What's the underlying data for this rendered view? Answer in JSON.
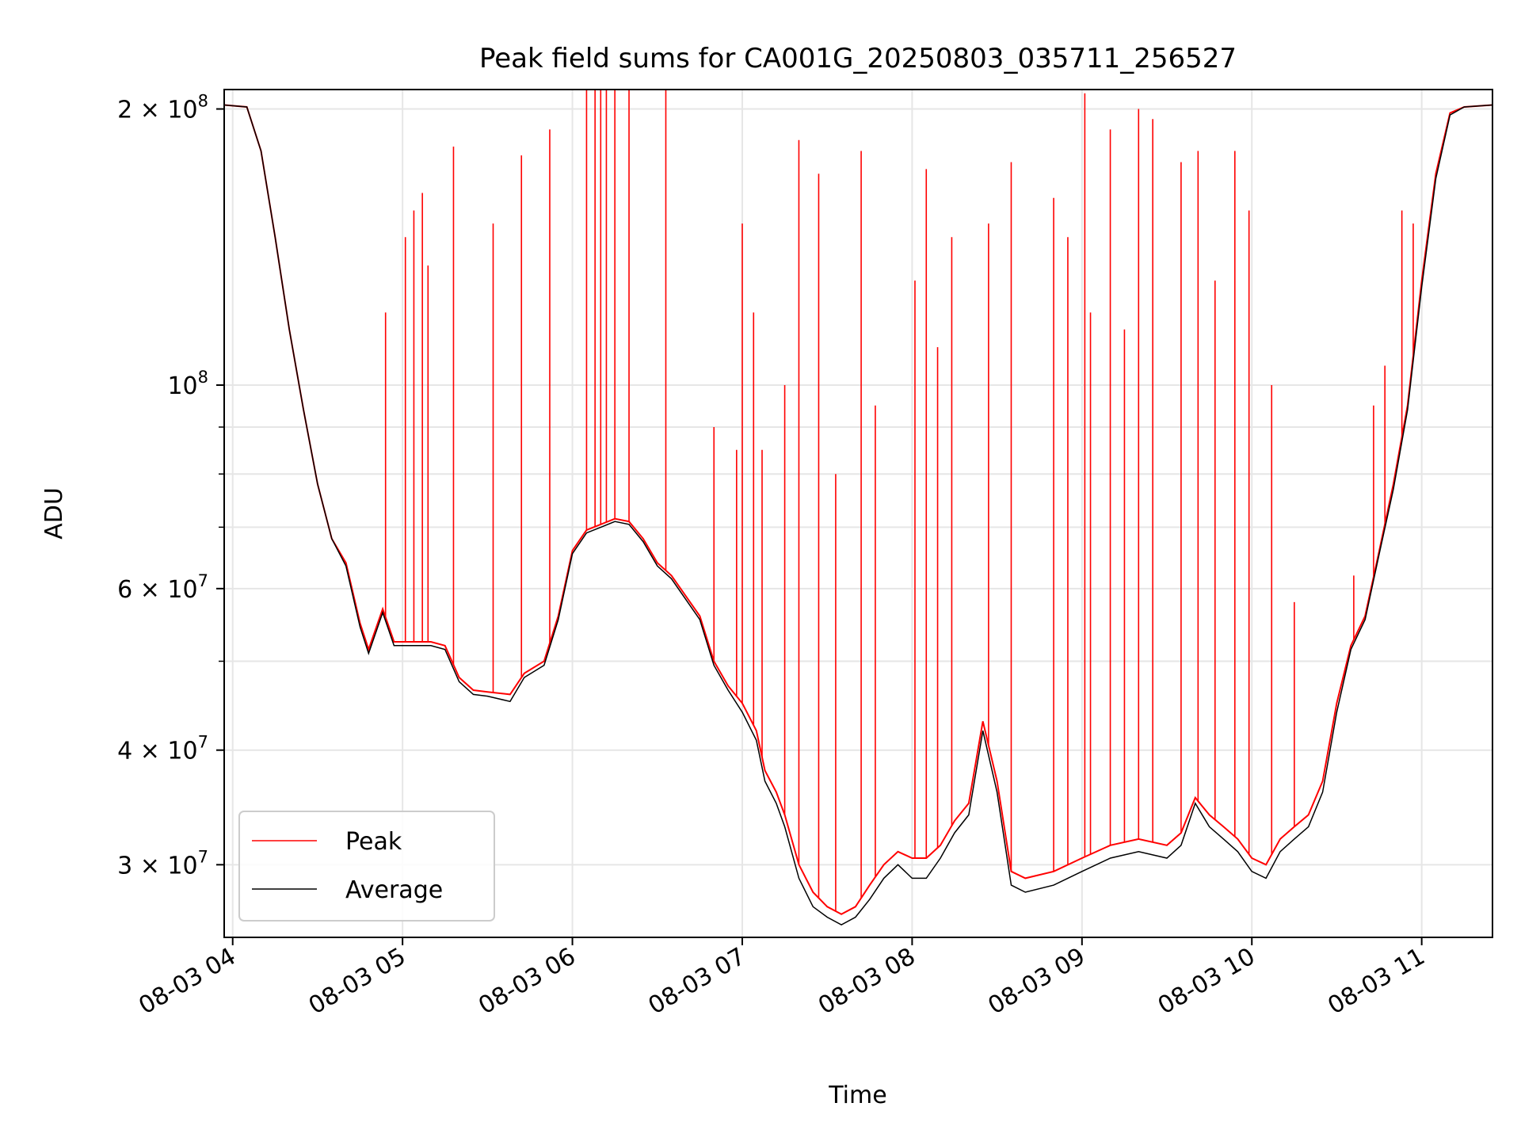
{
  "chart_data": {
    "type": "line",
    "title": "Peak field sums for CA001G_20250803_035711_256527",
    "xlabel": "Time",
    "ylabel": "ADU",
    "xscale": "time",
    "yscale": "log",
    "xlim": [
      "2025-08-03 03:57",
      "2025-08-03 11:25"
    ],
    "ylim": [
      25000000,
      210000000
    ],
    "xticks": [
      {
        "value": "2025-08-03 04:00",
        "label": "08-03 04"
      },
      {
        "value": "2025-08-03 05:00",
        "label": "08-03 05"
      },
      {
        "value": "2025-08-03 06:00",
        "label": "08-03 06"
      },
      {
        "value": "2025-08-03 07:00",
        "label": "08-03 07"
      },
      {
        "value": "2025-08-03 08:00",
        "label": "08-03 08"
      },
      {
        "value": "2025-08-03 09:00",
        "label": "08-03 09"
      },
      {
        "value": "2025-08-03 10:00",
        "label": "08-03 10"
      },
      {
        "value": "2025-08-03 11:00",
        "label": "08-03 11"
      }
    ],
    "yticks": [
      {
        "value": 200000000,
        "mantissa": "2",
        "exponent": "8"
      },
      {
        "value": 100000000,
        "mantissa": "",
        "exponent": "8"
      },
      {
        "value": 60000000,
        "mantissa": "6",
        "exponent": "7"
      },
      {
        "value": 40000000,
        "mantissa": "4",
        "exponent": "7"
      },
      {
        "value": 30000000,
        "mantissa": "3",
        "exponent": "7"
      }
    ],
    "yminor": [
      50000000,
      70000000,
      80000000,
      90000000
    ],
    "grid": true,
    "legend_position": "lower-left",
    "series": [
      {
        "name": "Peak",
        "color": "#ff0000",
        "baseline": [
          [
            "2025-08-03 03:57",
            202000000
          ],
          [
            "2025-08-03 04:05",
            201000000
          ],
          [
            "2025-08-03 04:10",
            180000000
          ],
          [
            "2025-08-03 04:15",
            145000000
          ],
          [
            "2025-08-03 04:20",
            115000000
          ],
          [
            "2025-08-03 04:25",
            94000000
          ],
          [
            "2025-08-03 04:30",
            78000000
          ],
          [
            "2025-08-03 04:35",
            68000000
          ],
          [
            "2025-08-03 04:40",
            64000000
          ],
          [
            "2025-08-03 04:45",
            55000000
          ],
          [
            "2025-08-03 04:48",
            51500000
          ],
          [
            "2025-08-03 04:53",
            57000000
          ],
          [
            "2025-08-03 04:57",
            52500000
          ],
          [
            "2025-08-03 05:10",
            52500000
          ],
          [
            "2025-08-03 05:15",
            52000000
          ],
          [
            "2025-08-03 05:20",
            48000000
          ],
          [
            "2025-08-03 05:25",
            46500000
          ],
          [
            "2025-08-03 05:30",
            46300000
          ],
          [
            "2025-08-03 05:38",
            46000000
          ],
          [
            "2025-08-03 05:43",
            48500000
          ],
          [
            "2025-08-03 05:50",
            50000000
          ],
          [
            "2025-08-03 05:55",
            56000000
          ],
          [
            "2025-08-03 06:00",
            66000000
          ],
          [
            "2025-08-03 06:05",
            69500000
          ],
          [
            "2025-08-03 06:15",
            71500000
          ],
          [
            "2025-08-03 06:20",
            71000000
          ],
          [
            "2025-08-03 06:25",
            68000000
          ],
          [
            "2025-08-03 06:30",
            64000000
          ],
          [
            "2025-08-03 06:35",
            62000000
          ],
          [
            "2025-08-03 06:45",
            56000000
          ],
          [
            "2025-08-03 06:50",
            50000000
          ],
          [
            "2025-08-03 06:55",
            47000000
          ],
          [
            "2025-08-03 07:00",
            45000000
          ],
          [
            "2025-08-03 07:05",
            42000000
          ],
          [
            "2025-08-03 07:08",
            38000000
          ],
          [
            "2025-08-03 07:12",
            36000000
          ],
          [
            "2025-08-03 07:15",
            34000000
          ],
          [
            "2025-08-03 07:20",
            30000000
          ],
          [
            "2025-08-03 07:25",
            28000000
          ],
          [
            "2025-08-03 07:30",
            27000000
          ],
          [
            "2025-08-03 07:35",
            26500000
          ],
          [
            "2025-08-03 07:40",
            27000000
          ],
          [
            "2025-08-03 07:45",
            28500000
          ],
          [
            "2025-08-03 07:50",
            30000000
          ],
          [
            "2025-08-03 07:55",
            31000000
          ],
          [
            "2025-08-03 08:00",
            30500000
          ],
          [
            "2025-08-03 08:05",
            30500000
          ],
          [
            "2025-08-03 08:10",
            31500000
          ],
          [
            "2025-08-03 08:15",
            33500000
          ],
          [
            "2025-08-03 08:20",
            35000000
          ],
          [
            "2025-08-03 08:25",
            43000000
          ],
          [
            "2025-08-03 08:30",
            37000000
          ],
          [
            "2025-08-03 08:35",
            29500000
          ],
          [
            "2025-08-03 08:40",
            29000000
          ],
          [
            "2025-08-03 08:50",
            29500000
          ],
          [
            "2025-08-03 09:00",
            30500000
          ],
          [
            "2025-08-03 09:10",
            31500000
          ],
          [
            "2025-08-03 09:20",
            32000000
          ],
          [
            "2025-08-03 09:30",
            31500000
          ],
          [
            "2025-08-03 09:35",
            32500000
          ],
          [
            "2025-08-03 09:40",
            35500000
          ],
          [
            "2025-08-03 09:45",
            34000000
          ],
          [
            "2025-08-03 09:50",
            33000000
          ],
          [
            "2025-08-03 09:55",
            32000000
          ],
          [
            "2025-08-03 10:00",
            30500000
          ],
          [
            "2025-08-03 10:05",
            30000000
          ],
          [
            "2025-08-03 10:10",
            32000000
          ],
          [
            "2025-08-03 10:15",
            33000000
          ],
          [
            "2025-08-03 10:20",
            34000000
          ],
          [
            "2025-08-03 10:25",
            37000000
          ],
          [
            "2025-08-03 10:30",
            45000000
          ],
          [
            "2025-08-03 10:35",
            52000000
          ],
          [
            "2025-08-03 10:40",
            56000000
          ],
          [
            "2025-08-03 10:45",
            66000000
          ],
          [
            "2025-08-03 10:50",
            78000000
          ],
          [
            "2025-08-03 10:55",
            95000000
          ],
          [
            "2025-08-03 11:00",
            130000000
          ],
          [
            "2025-08-03 11:05",
            170000000
          ],
          [
            "2025-08-03 11:10",
            198000000
          ],
          [
            "2025-08-03 11:15",
            201000000
          ],
          [
            "2025-08-03 11:25",
            202000000
          ]
        ],
        "spikes": [
          [
            "2025-08-03 04:54",
            120000000
          ],
          [
            "2025-08-03 05:01",
            145000000
          ],
          [
            "2025-08-03 05:04",
            155000000
          ],
          [
            "2025-08-03 05:07",
            162000000
          ],
          [
            "2025-08-03 05:09",
            135000000
          ],
          [
            "2025-08-03 05:18",
            182000000
          ],
          [
            "2025-08-03 05:32",
            150000000
          ],
          [
            "2025-08-03 05:42",
            178000000
          ],
          [
            "2025-08-03 05:52",
            190000000
          ],
          [
            "2025-08-03 06:05",
            210000000
          ],
          [
            "2025-08-03 06:08",
            210000000
          ],
          [
            "2025-08-03 06:10",
            210000000
          ],
          [
            "2025-08-03 06:12",
            210000000
          ],
          [
            "2025-08-03 06:15",
            210000000
          ],
          [
            "2025-08-03 06:20",
            210000000
          ],
          [
            "2025-08-03 06:33",
            210000000
          ],
          [
            "2025-08-03 06:50",
            90000000
          ],
          [
            "2025-08-03 06:58",
            85000000
          ],
          [
            "2025-08-03 07:00",
            150000000
          ],
          [
            "2025-08-03 07:04",
            120000000
          ],
          [
            "2025-08-03 07:07",
            85000000
          ],
          [
            "2025-08-03 07:15",
            100000000
          ],
          [
            "2025-08-03 07:20",
            185000000
          ],
          [
            "2025-08-03 07:27",
            170000000
          ],
          [
            "2025-08-03 07:33",
            80000000
          ],
          [
            "2025-08-03 07:42",
            180000000
          ],
          [
            "2025-08-03 07:47",
            95000000
          ],
          [
            "2025-08-03 08:01",
            130000000
          ],
          [
            "2025-08-03 08:05",
            172000000
          ],
          [
            "2025-08-03 08:09",
            110000000
          ],
          [
            "2025-08-03 08:14",
            145000000
          ],
          [
            "2025-08-03 08:27",
            150000000
          ],
          [
            "2025-08-03 08:35",
            175000000
          ],
          [
            "2025-08-03 08:50",
            160000000
          ],
          [
            "2025-08-03 08:55",
            145000000
          ],
          [
            "2025-08-03 09:01",
            208000000
          ],
          [
            "2025-08-03 09:03",
            120000000
          ],
          [
            "2025-08-03 09:10",
            190000000
          ],
          [
            "2025-08-03 09:15",
            115000000
          ],
          [
            "2025-08-03 09:20",
            200000000
          ],
          [
            "2025-08-03 09:25",
            195000000
          ],
          [
            "2025-08-03 09:35",
            175000000
          ],
          [
            "2025-08-03 09:41",
            180000000
          ],
          [
            "2025-08-03 09:47",
            130000000
          ],
          [
            "2025-08-03 09:54",
            180000000
          ],
          [
            "2025-08-03 09:59",
            155000000
          ],
          [
            "2025-08-03 10:07",
            100000000
          ],
          [
            "2025-08-03 10:15",
            58000000
          ],
          [
            "2025-08-03 10:36",
            62000000
          ],
          [
            "2025-08-03 10:43",
            95000000
          ],
          [
            "2025-08-03 10:47",
            105000000
          ],
          [
            "2025-08-03 10:53",
            155000000
          ],
          [
            "2025-08-03 10:57",
            150000000
          ]
        ]
      },
      {
        "name": "Average",
        "color": "#000000",
        "values": [
          [
            "2025-08-03 03:57",
            202000000
          ],
          [
            "2025-08-03 04:05",
            201000000
          ],
          [
            "2025-08-03 04:10",
            180000000
          ],
          [
            "2025-08-03 04:15",
            145000000
          ],
          [
            "2025-08-03 04:20",
            115000000
          ],
          [
            "2025-08-03 04:25",
            94000000
          ],
          [
            "2025-08-03 04:30",
            78000000
          ],
          [
            "2025-08-03 04:35",
            68000000
          ],
          [
            "2025-08-03 04:40",
            63500000
          ],
          [
            "2025-08-03 04:45",
            54500000
          ],
          [
            "2025-08-03 04:48",
            51000000
          ],
          [
            "2025-08-03 04:53",
            56500000
          ],
          [
            "2025-08-03 04:57",
            52000000
          ],
          [
            "2025-08-03 05:10",
            52000000
          ],
          [
            "2025-08-03 05:15",
            51500000
          ],
          [
            "2025-08-03 05:20",
            47500000
          ],
          [
            "2025-08-03 05:25",
            46000000
          ],
          [
            "2025-08-03 05:30",
            45800000
          ],
          [
            "2025-08-03 05:38",
            45200000
          ],
          [
            "2025-08-03 05:43",
            48000000
          ],
          [
            "2025-08-03 05:50",
            49500000
          ],
          [
            "2025-08-03 05:55",
            55500000
          ],
          [
            "2025-08-03 06:00",
            65500000
          ],
          [
            "2025-08-03 06:05",
            69000000
          ],
          [
            "2025-08-03 06:15",
            71000000
          ],
          [
            "2025-08-03 06:20",
            70500000
          ],
          [
            "2025-08-03 06:25",
            67500000
          ],
          [
            "2025-08-03 06:30",
            63500000
          ],
          [
            "2025-08-03 06:35",
            61500000
          ],
          [
            "2025-08-03 06:45",
            55500000
          ],
          [
            "2025-08-03 06:50",
            49500000
          ],
          [
            "2025-08-03 06:55",
            46500000
          ],
          [
            "2025-08-03 07:00",
            44000000
          ],
          [
            "2025-08-03 07:05",
            41000000
          ],
          [
            "2025-08-03 07:08",
            37000000
          ],
          [
            "2025-08-03 07:12",
            35000000
          ],
          [
            "2025-08-03 07:15",
            33000000
          ],
          [
            "2025-08-03 07:20",
            29000000
          ],
          [
            "2025-08-03 07:25",
            27000000
          ],
          [
            "2025-08-03 07:30",
            26300000
          ],
          [
            "2025-08-03 07:35",
            25800000
          ],
          [
            "2025-08-03 07:40",
            26300000
          ],
          [
            "2025-08-03 07:45",
            27500000
          ],
          [
            "2025-08-03 07:50",
            29000000
          ],
          [
            "2025-08-03 07:55",
            30000000
          ],
          [
            "2025-08-03 08:00",
            29000000
          ],
          [
            "2025-08-03 08:05",
            29000000
          ],
          [
            "2025-08-03 08:10",
            30500000
          ],
          [
            "2025-08-03 08:15",
            32500000
          ],
          [
            "2025-08-03 08:20",
            34000000
          ],
          [
            "2025-08-03 08:25",
            42000000
          ],
          [
            "2025-08-03 08:30",
            36000000
          ],
          [
            "2025-08-03 08:35",
            28500000
          ],
          [
            "2025-08-03 08:40",
            28000000
          ],
          [
            "2025-08-03 08:50",
            28500000
          ],
          [
            "2025-08-03 09:00",
            29500000
          ],
          [
            "2025-08-03 09:10",
            30500000
          ],
          [
            "2025-08-03 09:20",
            31000000
          ],
          [
            "2025-08-03 09:30",
            30500000
          ],
          [
            "2025-08-03 09:35",
            31500000
          ],
          [
            "2025-08-03 09:40",
            35000000
          ],
          [
            "2025-08-03 09:45",
            33000000
          ],
          [
            "2025-08-03 09:50",
            32000000
          ],
          [
            "2025-08-03 09:55",
            31000000
          ],
          [
            "2025-08-03 10:00",
            29500000
          ],
          [
            "2025-08-03 10:05",
            29000000
          ],
          [
            "2025-08-03 10:10",
            31000000
          ],
          [
            "2025-08-03 10:15",
            32000000
          ],
          [
            "2025-08-03 10:20",
            33000000
          ],
          [
            "2025-08-03 10:25",
            36000000
          ],
          [
            "2025-08-03 10:30",
            44000000
          ],
          [
            "2025-08-03 10:35",
            51500000
          ],
          [
            "2025-08-03 10:40",
            55500000
          ],
          [
            "2025-08-03 10:45",
            65500000
          ],
          [
            "2025-08-03 10:50",
            77000000
          ],
          [
            "2025-08-03 10:55",
            94000000
          ],
          [
            "2025-08-03 11:00",
            128000000
          ],
          [
            "2025-08-03 11:05",
            168000000
          ],
          [
            "2025-08-03 11:10",
            197000000
          ],
          [
            "2025-08-03 11:15",
            201000000
          ],
          [
            "2025-08-03 11:25",
            202000000
          ]
        ]
      }
    ]
  }
}
